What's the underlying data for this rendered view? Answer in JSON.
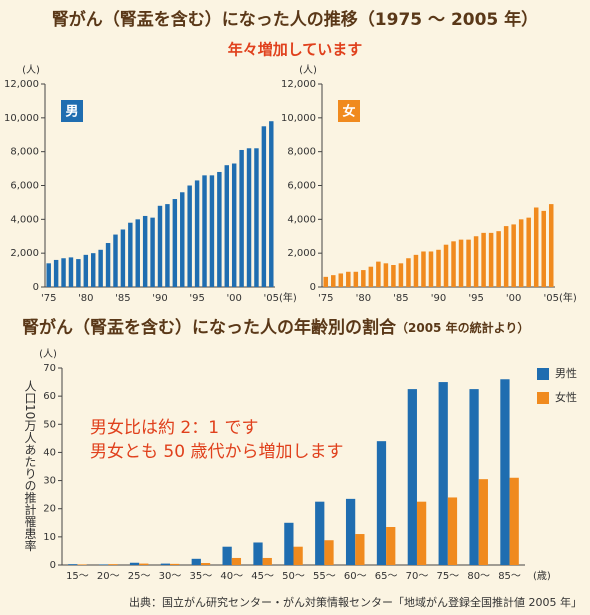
{
  "title": "腎がん（腎盂を含む）になった人の推移（1975 〜 2005 年）",
  "subtitle": "年々増加しています",
  "chart_data": [
    {
      "type": "bar",
      "y_unit": "(人)",
      "x_unit": "(年)",
      "categories": [
        "'75",
        null,
        null,
        null,
        null,
        "'80",
        null,
        null,
        null,
        null,
        "'85",
        null,
        null,
        null,
        null,
        "'90",
        null,
        null,
        null,
        null,
        "'95",
        null,
        null,
        null,
        null,
        "'00",
        null,
        null,
        null,
        null,
        "'05"
      ],
      "series": [
        {
          "name": "男",
          "color": "#1f6db0",
          "values": [
            1400,
            1600,
            1700,
            1750,
            1650,
            1900,
            2000,
            2200,
            2600,
            3100,
            3400,
            3800,
            4000,
            4200,
            4100,
            4800,
            4900,
            5200,
            5600,
            6000,
            6300,
            6600,
            6600,
            6800,
            7200,
            7300,
            8100,
            8200,
            8200,
            9500,
            9800
          ]
        }
      ],
      "ylim": [
        0,
        12000
      ],
      "yticks": [
        0,
        {
          "value": 2000,
          "label": "2,000"
        },
        {
          "value": 4000,
          "label": "4,000"
        },
        {
          "value": 6000,
          "label": "6,000"
        },
        {
          "value": 8000,
          "label": "8,000"
        },
        {
          "value": 10000,
          "label": "10,000"
        },
        {
          "value": 12000,
          "label": "12,000"
        }
      ]
    },
    {
      "type": "bar",
      "y_unit": "(人)",
      "x_unit": "(年)",
      "categories": [
        "'75",
        null,
        null,
        null,
        null,
        "'80",
        null,
        null,
        null,
        null,
        "'85",
        null,
        null,
        null,
        null,
        "'90",
        null,
        null,
        null,
        null,
        "'95",
        null,
        null,
        null,
        null,
        "'00",
        null,
        null,
        null,
        null,
        "'05"
      ],
      "series": [
        {
          "name": "女",
          "color": "#f08a1e",
          "values": [
            600,
            700,
            800,
            900,
            900,
            1000,
            1200,
            1500,
            1400,
            1300,
            1400,
            1700,
            1900,
            2100,
            2100,
            2200,
            2500,
            2700,
            2800,
            2800,
            3000,
            3200,
            3200,
            3300,
            3600,
            3700,
            4000,
            4100,
            4700,
            4500,
            4900
          ]
        }
      ],
      "ylim": [
        0,
        12000
      ],
      "yticks": [
        0,
        {
          "value": 2000,
          "label": "2,000"
        },
        {
          "value": 4000,
          "label": "4,000"
        },
        {
          "value": 6000,
          "label": "6,000"
        },
        {
          "value": 8000,
          "label": "8,000"
        },
        {
          "value": 10000,
          "label": "10,000"
        },
        {
          "value": 12000,
          "label": "12,000"
        }
      ]
    },
    {
      "type": "bar",
      "title": "腎がん（腎盂を含む）になった人の年齢別の割合",
      "subtitle": "（2005 年の統計より）",
      "y_label": "人口10万人あたりの推計罹患率",
      "y_unit": "(人)",
      "x_unit": "(歳)",
      "annotations": [
        "男女比は約 2：1 です",
        "男女とも 50 歳代から増加します"
      ],
      "categories": [
        "15〜",
        "20〜",
        "25〜",
        "30〜",
        "35〜",
        "40〜",
        "45〜",
        "50〜",
        "55〜",
        "60〜",
        "65〜",
        "70〜",
        "75〜",
        "80〜",
        "85〜"
      ],
      "series": [
        {
          "name": "男性",
          "color": "#1f6db0",
          "values": [
            0.3,
            0.2,
            0.8,
            0.5,
            2.2,
            6.5,
            8,
            15,
            22.5,
            23.5,
            44,
            62.5,
            65,
            62.5,
            66
          ]
        },
        {
          "name": "女性",
          "color": "#f08a1e",
          "values": [
            0.2,
            0.3,
            0.5,
            0.4,
            0.7,
            2.5,
            2.5,
            6.5,
            8.8,
            11,
            13.5,
            22.5,
            24,
            30.5,
            31
          ]
        }
      ],
      "ylim": [
        0,
        70
      ],
      "yticks": [
        0,
        10,
        20,
        30,
        40,
        50,
        60,
        70
      ],
      "legend": "top-right"
    }
  ],
  "source": "出典：国立がん研究センター・がん対策情報センター「地域がん登録全国推計値 2005 年」"
}
